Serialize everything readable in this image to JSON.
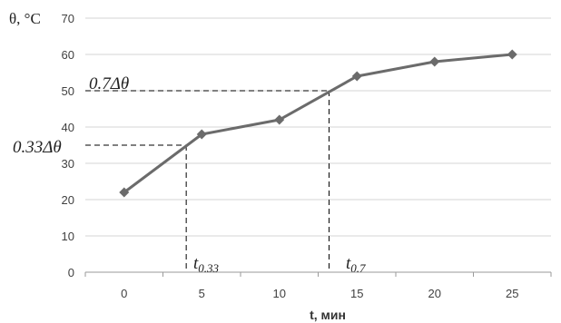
{
  "chart_data": {
    "type": "line",
    "ylabel": "θ, °C",
    "xlabel": "t, мин",
    "xlim": [
      -2.5,
      27.5
    ],
    "ylim": [
      0,
      70
    ],
    "x_ticks": [
      0,
      5,
      10,
      15,
      20,
      25
    ],
    "y_ticks": [
      0,
      10,
      20,
      30,
      40,
      50,
      60,
      70
    ],
    "grid": "horizontal",
    "marker": "diamond",
    "color": "#6b6b6b",
    "series": [
      {
        "x": [
          0,
          5,
          10,
          15,
          20,
          25
        ],
        "values": [
          22,
          38,
          42,
          54,
          58,
          60
        ]
      }
    ],
    "annotations": {
      "level_high": {
        "label": "0.7Δθ",
        "y": 50,
        "x": 13.2
      },
      "level_low": {
        "label": "0.33Δθ",
        "y": 35,
        "x": 4
      },
      "time_high": {
        "label": "t",
        "sub": "0.7",
        "x": 13.2
      },
      "time_low": {
        "label": "t",
        "sub": "0.33",
        "x": 4
      }
    }
  }
}
